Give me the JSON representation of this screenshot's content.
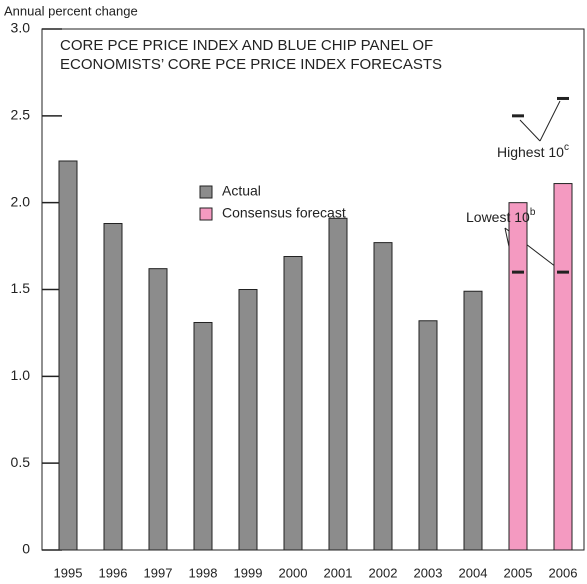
{
  "chart_data": {
    "type": "bar",
    "y_axis_label": "Annual percent change",
    "title": [
      "CORE PCE PRICE INDEX AND BLUE CHIP PANEL OF",
      "ECONOMISTS’ CORE PCE PRICE INDEX FORECASTS"
    ],
    "categories": [
      "1995",
      "1996",
      "1997",
      "1998",
      "1999",
      "2000",
      "2001",
      "2002",
      "2003",
      "2004",
      "2005",
      "2006"
    ],
    "series": [
      {
        "name": "Actual",
        "color": "#8c8c8c",
        "values": [
          2.24,
          1.88,
          1.62,
          1.31,
          1.5,
          1.69,
          1.91,
          1.77,
          1.32,
          1.49,
          null,
          null
        ]
      },
      {
        "name": "Consensus forecast",
        "color": "#f49ac1",
        "values": [
          null,
          null,
          null,
          null,
          null,
          null,
          null,
          null,
          null,
          null,
          2.0,
          2.11
        ]
      }
    ],
    "range_markers": [
      {
        "name": "Highest 10",
        "sup": "c",
        "values": [
          null,
          null,
          null,
          null,
          null,
          null,
          null,
          null,
          null,
          null,
          2.5,
          2.6
        ]
      },
      {
        "name": "Lowest 10",
        "sup": "b",
        "values": [
          null,
          null,
          null,
          null,
          null,
          null,
          null,
          null,
          null,
          null,
          1.6,
          1.6
        ]
      }
    ],
    "ylim": [
      0,
      3.0
    ],
    "yticks": [
      0,
      {
        "value": 0.5,
        "label": "0.5"
      },
      {
        "value": 1,
        "label": "1.0"
      },
      {
        "value": 1.5,
        "label": "1.5"
      },
      {
        "value": 2,
        "label": "2.0"
      },
      {
        "value": 2.5,
        "label": "2.5"
      },
      {
        "value": 3,
        "label": "3.0"
      }
    ]
  }
}
